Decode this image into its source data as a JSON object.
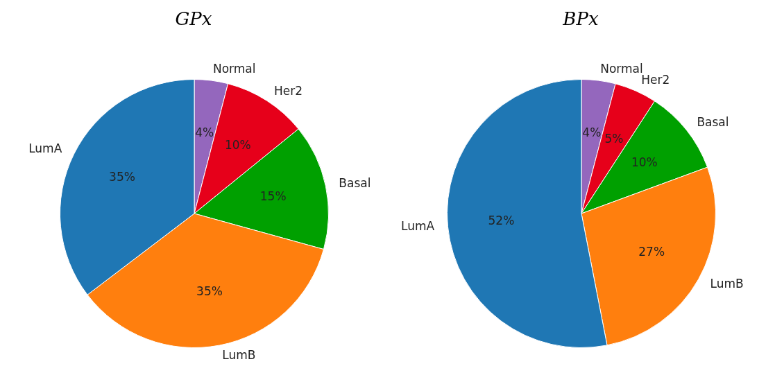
{
  "chart_data": [
    {
      "type": "pie",
      "title": "GPx",
      "categories": [
        "Normal",
        "Her2",
        "Basal",
        "LumB",
        "LumA"
      ],
      "values": [
        4,
        10,
        15,
        35,
        35
      ],
      "value_labels": [
        "4%",
        "10%",
        "15%",
        "35%",
        "35%"
      ],
      "colors": [
        "#9467bd",
        "#e6001a",
        "#00a000",
        "#ff7f0e",
        "#1f77b4"
      ]
    },
    {
      "type": "pie",
      "title": "BPx",
      "categories": [
        "Normal",
        "Her2",
        "Basal",
        "LumB",
        "LumA"
      ],
      "values": [
        4,
        5,
        10,
        27,
        52
      ],
      "value_labels": [
        "4%",
        "5%",
        "10%",
        "27%",
        "52%"
      ],
      "colors": [
        "#9467bd",
        "#e6001a",
        "#00a000",
        "#ff7f0e",
        "#1f77b4"
      ]
    }
  ]
}
